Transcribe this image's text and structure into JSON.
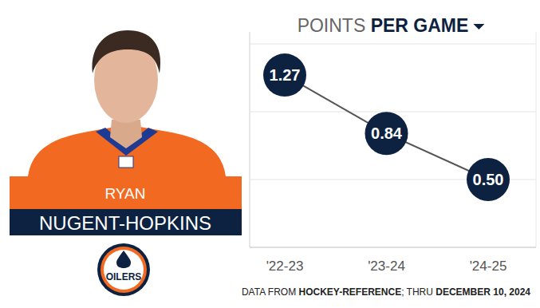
{
  "chart_data": {
    "type": "line",
    "title": [
      "POINTS ",
      "PER GAME"
    ],
    "categories": [
      "'22-23",
      "'23-24",
      "'24-25"
    ],
    "values": [
      1.27,
      0.84,
      0.5
    ],
    "value_labels": [
      "1.27",
      "0.84",
      "0.50"
    ],
    "color": "#0d2240",
    "ylim": [
      0,
      1.5
    ],
    "yticks": [
      0,
      0.5,
      1,
      1.5
    ],
    "grid": true,
    "data_labels": true,
    "tick_labels": "x",
    "marker": "circle",
    "line_style": "solid",
    "source": [
      "DATA FROM ",
      "HOCKEY-REFERENCE",
      "; THRU ",
      "DECEMBER 10, 2024"
    ]
  },
  "player": {
    "first_name": "RYAN",
    "last_name": "NUGENT-HOPKINS",
    "team": "OILERS"
  }
}
